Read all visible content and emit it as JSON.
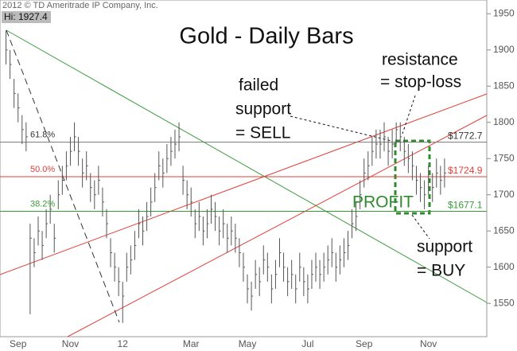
{
  "chart_data": {
    "type": "ohlc",
    "title": "Gold - Daily Bars",
    "copyright": "2012 © TD Ameritrade IP Company, Inc.",
    "hi_label": "Hi: 1927.4",
    "color": "#555555",
    "categories": [
      null,
      null,
      null,
      "Sep",
      null,
      null,
      null,
      null,
      null,
      null,
      null,
      null,
      null,
      null,
      null,
      null,
      "Nov",
      null,
      null,
      null,
      null,
      null,
      null,
      null,
      null,
      null,
      null,
      null,
      null,
      "12",
      null,
      null,
      null,
      null,
      null,
      null,
      null,
      null,
      null,
      null,
      null,
      null,
      null,
      null,
      null,
      null,
      "Mar",
      null,
      null,
      null,
      null,
      null,
      null,
      null,
      null,
      null,
      null,
      null,
      null,
      null,
      "May",
      null,
      null,
      null,
      null,
      null,
      null,
      null,
      null,
      null,
      null,
      null,
      null,
      null,
      null,
      "Jul",
      null,
      null,
      null,
      null,
      null,
      null,
      null,
      null,
      null,
      null,
      null,
      null,
      null,
      "Sep",
      null,
      null,
      null,
      null,
      null,
      null,
      null,
      null,
      null,
      null,
      null,
      null,
      null,
      null,
      null,
      "Nov",
      null,
      null,
      null,
      null
    ],
    "high": [
      1927,
      1900,
      1860,
      1840,
      1810,
      1800,
      1660,
      1640,
      1670,
      1650,
      1680,
      1700,
      1660,
      1720,
      1740,
      1760,
      1780,
      1800,
      1780,
      1750,
      1760,
      1730,
      1720,
      1740,
      1710,
      1680,
      1640,
      1620,
      1600,
      1580,
      1620,
      1630,
      1650,
      1680,
      1670,
      1690,
      1710,
      1730,
      1760,
      1750,
      1770,
      1780,
      1790,
      1800,
      1740,
      1720,
      1710,
      1680,
      1690,
      1670,
      1680,
      1700,
      1690,
      1670,
      1680,
      1660,
      1670,
      1660,
      1640,
      1620,
      1590,
      1580,
      1610,
      1600,
      1630,
      1620,
      1590,
      1610,
      1640,
      1620,
      1600,
      1610,
      1590,
      1620,
      1600,
      1590,
      1610,
      1620,
      1610,
      1620,
      1630,
      1640,
      1620,
      1630,
      1640,
      1650,
      1680,
      1690,
      1720,
      1750,
      1760,
      1780,
      1790,
      1790,
      1800,
      1780,
      1790,
      1800,
      1800,
      1780,
      1770,
      1760,
      1740,
      1730,
      1720,
      1740,
      1730,
      1750,
      1740,
      1750
    ],
    "low": [
      1880,
      1860,
      1820,
      1800,
      1770,
      1760,
      1535,
      1600,
      1630,
      1610,
      1640,
      1660,
      1620,
      1680,
      1700,
      1720,
      1740,
      1760,
      1740,
      1710,
      1720,
      1690,
      1680,
      1700,
      1670,
      1640,
      1600,
      1580,
      1560,
      1523,
      1580,
      1590,
      1610,
      1640,
      1630,
      1650,
      1670,
      1690,
      1720,
      1710,
      1730,
      1740,
      1750,
      1760,
      1700,
      1680,
      1670,
      1640,
      1650,
      1630,
      1640,
      1660,
      1650,
      1630,
      1640,
      1620,
      1630,
      1620,
      1600,
      1580,
      1550,
      1540,
      1570,
      1560,
      1590,
      1580,
      1550,
      1570,
      1600,
      1580,
      1560,
      1570,
      1550,
      1580,
      1560,
      1550,
      1570,
      1580,
      1570,
      1580,
      1590,
      1600,
      1580,
      1590,
      1600,
      1610,
      1640,
      1650,
      1680,
      1710,
      1720,
      1740,
      1750,
      1750,
      1760,
      1740,
      1750,
      1770,
      1760,
      1740,
      1730,
      1720,
      1700,
      1690,
      1680,
      1700,
      1690,
      1710,
      1700,
      1710
    ],
    "close": [
      1900,
      1880,
      1840,
      1820,
      1790,
      1780,
      1640,
      1620,
      1650,
      1630,
      1660,
      1680,
      1640,
      1700,
      1720,
      1740,
      1760,
      1780,
      1760,
      1730,
      1740,
      1710,
      1700,
      1720,
      1690,
      1660,
      1620,
      1600,
      1580,
      1560,
      1600,
      1610,
      1630,
      1660,
      1650,
      1670,
      1690,
      1710,
      1740,
      1730,
      1750,
      1760,
      1770,
      1780,
      1720,
      1700,
      1690,
      1660,
      1670,
      1650,
      1660,
      1680,
      1670,
      1650,
      1660,
      1640,
      1650,
      1640,
      1620,
      1600,
      1570,
      1560,
      1590,
      1580,
      1610,
      1600,
      1570,
      1590,
      1620,
      1600,
      1580,
      1590,
      1570,
      1600,
      1580,
      1570,
      1590,
      1600,
      1590,
      1600,
      1610,
      1620,
      1600,
      1610,
      1620,
      1630,
      1660,
      1670,
      1700,
      1730,
      1740,
      1760,
      1770,
      1770,
      1780,
      1760,
      1770,
      1790,
      1780,
      1760,
      1750,
      1740,
      1720,
      1710,
      1700,
      1720,
      1710,
      1730,
      1720,
      1730
    ],
    "ylim": [
      1504,
      1969
    ],
    "yticks": [
      1550,
      1600,
      1650,
      1700,
      1750,
      1800,
      1850,
      1900,
      1950
    ],
    "levels": [
      {
        "name": "61.8%",
        "value": 1772.7,
        "label": "$1772.7",
        "color": "#777777"
      },
      {
        "name": "50.0%",
        "value": 1724.9,
        "label": "$1724.9",
        "color": "#e0403a"
      },
      {
        "name": "38.2%",
        "value": 1677.1,
        "label": "$1677.1",
        "color": "#3a9a3a"
      }
    ],
    "annotations": [
      "failed",
      "support",
      "= SELL",
      "resistance",
      "= stop-loss",
      "PROFIT",
      "support",
      "= BUY"
    ]
  }
}
